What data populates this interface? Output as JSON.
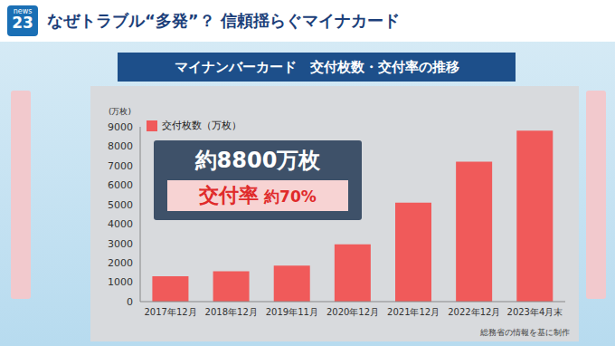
{
  "header": {
    "logo": [
      "news",
      "23"
    ],
    "headline": "なぜトラブル“多発”？ 信頼揺らぐマイナカード"
  },
  "chart_data": {
    "type": "bar",
    "title": "マイナンバーカード　交付枚数・交付率の推移",
    "categories": [
      "2017年12月",
      "2018年12月",
      "2019年11月",
      "2020年12月",
      "2021年12月",
      "2022年12月",
      "2023年4月末"
    ],
    "series": [
      {
        "name": "交付枚数（万枚）",
        "color": "#f05a5a",
        "values": [
          1300,
          1560,
          1850,
          2950,
          5100,
          7200,
          8800
        ]
      }
    ],
    "y_label": "(万枚)",
    "ylim": [
      0,
      9000
    ],
    "yticks": [
      0,
      1000,
      2000,
      3000,
      4000,
      5000,
      6000,
      7000,
      8000,
      9000
    ],
    "grid": false,
    "legend": "upper left",
    "annotations": [
      "約8800万枚",
      "交付率 約70%"
    ],
    "source": "総務省の情報を基に制作"
  }
}
